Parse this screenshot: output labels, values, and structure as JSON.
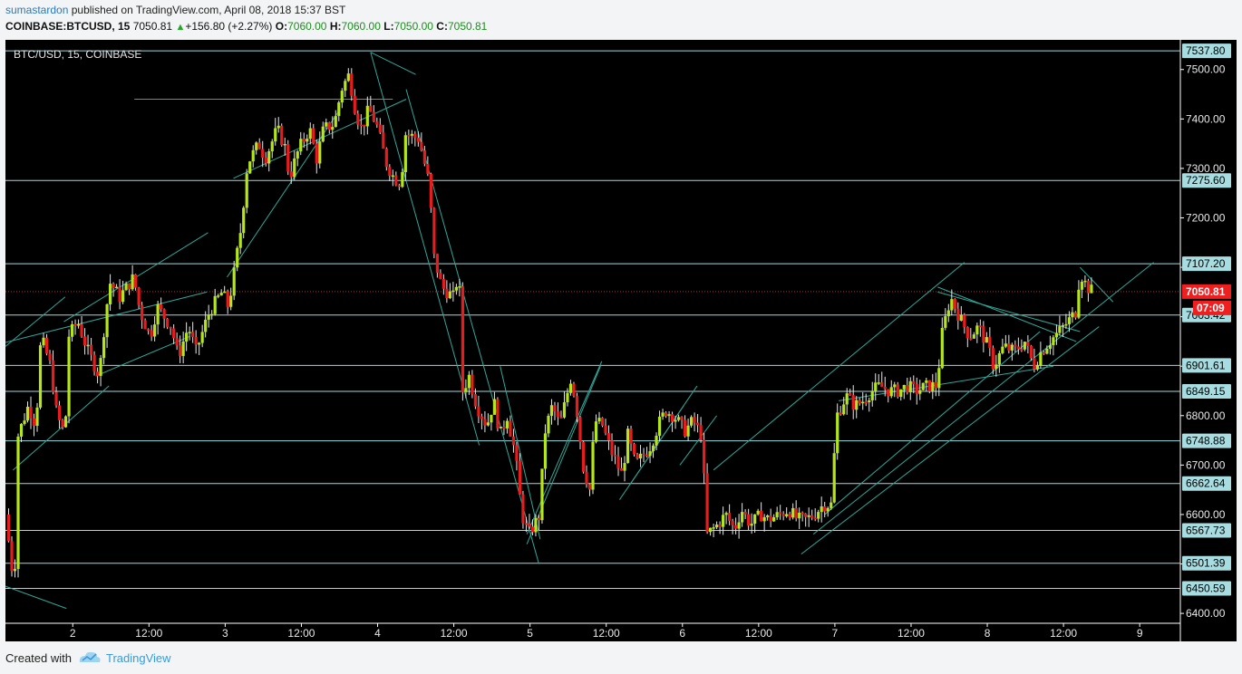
{
  "header": {
    "author": "sumastardon",
    "published_text": "published on TradingView.com, April 08, 2018 15:37 BST",
    "symbol_line": "COINBASE:BTCUSD, 15",
    "last": "7050.81",
    "change": "+156.80 (+2.27%)",
    "o_label": "O:",
    "o_value": "7060.00",
    "h_label": "H:",
    "h_value": "7060.00",
    "l_label": "L:",
    "l_value": "7050.00",
    "c_label": "C:",
    "c_value": "7050.81"
  },
  "chart_data": {
    "type": "candlestick",
    "title": "BTC/USD, 15, COINBASE",
    "ylim": [
      6380,
      7560
    ],
    "y_ticks": [
      6400,
      6500,
      6600,
      6700,
      6800,
      6900,
      7000,
      7100,
      7200,
      7300,
      7400,
      7500
    ],
    "y_tick_labels": [
      "6400.00",
      "6500.00",
      "6600.00",
      "6700.00",
      "6800.00",
      "6900.00",
      "7000.00",
      "7100.00",
      "7200.00",
      "7300.00",
      "7400.00",
      "7500.00"
    ],
    "x_ticks": [
      {
        "label": "2",
        "t": 12
      },
      {
        "label": "12:00",
        "t": 24
      },
      {
        "label": "3",
        "t": 36
      },
      {
        "label": "12:00",
        "t": 48
      },
      {
        "label": "4",
        "t": 60
      },
      {
        "label": "12:00",
        "t": 72
      },
      {
        "label": "5",
        "t": 84
      },
      {
        "label": "12:00",
        "t": 96
      },
      {
        "label": "6",
        "t": 108
      },
      {
        "label": "12:00",
        "t": 120
      },
      {
        "label": "7",
        "t": 132
      },
      {
        "label": "12:00",
        "t": 144
      },
      {
        "label": "8",
        "t": 156
      },
      {
        "label": "12:00",
        "t": 168
      },
      {
        "label": "9",
        "t": 180
      }
    ],
    "t_range": [
      1.4,
      186.4
    ],
    "price_levels": [
      {
        "value": 7537.8,
        "label": "7537.80"
      },
      {
        "value": 7275.6,
        "label": "7275.60"
      },
      {
        "value": 7107.2,
        "label": "7107.20"
      },
      {
        "value": 7003.42,
        "label": "7003.42"
      },
      {
        "value": 6901.61,
        "label": "6901.61"
      },
      {
        "value": 6849.15,
        "label": "6849.15"
      },
      {
        "value": 6748.88,
        "label": "6748.88"
      },
      {
        "value": 6662.64,
        "label": "6662.64"
      },
      {
        "value": 6567.73,
        "label": "6567.73"
      },
      {
        "value": 6501.39,
        "label": "6501.39"
      },
      {
        "value": 6450.59,
        "label": "6450.59"
      }
    ],
    "last_price": {
      "value": 7050.81,
      "label": "7050.81",
      "countdown": "07:09"
    },
    "series_path": [
      [
        1.4,
        6600
      ],
      [
        2.8,
        6450
      ],
      [
        3.4,
        6760
      ],
      [
        5,
        6820
      ],
      [
        6.2,
        6780
      ],
      [
        7,
        6960
      ],
      [
        8.5,
        6900
      ],
      [
        9.5,
        6800
      ],
      [
        10.8,
        6760
      ],
      [
        11.3,
        6960
      ],
      [
        12.8,
        6990
      ],
      [
        14.4,
        6930
      ],
      [
        16.2,
        6880
      ],
      [
        16.6,
        6940
      ],
      [
        17.8,
        7070
      ],
      [
        19.4,
        7040
      ],
      [
        21.6,
        7080
      ],
      [
        22.6,
        7010
      ],
      [
        24.2,
        6960
      ],
      [
        25.3,
        7020
      ],
      [
        27.5,
        6980
      ],
      [
        28.6,
        6920
      ],
      [
        30.2,
        6980
      ],
      [
        31.4,
        6930
      ],
      [
        32.2,
        6960
      ],
      [
        33.5,
        7010
      ],
      [
        35.5,
        7050
      ],
      [
        36.5,
        7020
      ],
      [
        37.3,
        7080
      ],
      [
        38.5,
        7180
      ],
      [
        39.5,
        7310
      ],
      [
        41.3,
        7350
      ],
      [
        42.3,
        7320
      ],
      [
        44.2,
        7380
      ],
      [
        45.5,
        7340
      ],
      [
        46.1,
        7280
      ],
      [
        47.6,
        7340
      ],
      [
        49.3,
        7380
      ],
      [
        50.4,
        7320
      ],
      [
        51.5,
        7380
      ],
      [
        53.2,
        7390
      ],
      [
        54.3,
        7460
      ],
      [
        55.5,
        7490
      ],
      [
        56.6,
        7410
      ],
      [
        57.5,
        7380
      ],
      [
        58.6,
        7420
      ],
      [
        59.8,
        7390
      ],
      [
        61.4,
        7310
      ],
      [
        62.6,
        7280
      ],
      [
        63.7,
        7270
      ],
      [
        64.3,
        7370
      ],
      [
        66.5,
        7360
      ],
      [
        68.1,
        7270
      ],
      [
        68.9,
        7120
      ],
      [
        70.1,
        7060
      ],
      [
        71.9,
        7040
      ],
      [
        72.8,
        7090
      ],
      [
        73.4,
        6850
      ],
      [
        74.4,
        6880
      ],
      [
        75.6,
        6820
      ],
      [
        77.2,
        6780
      ],
      [
        78.3,
        6830
      ],
      [
        79.3,
        6760
      ],
      [
        80.4,
        6800
      ],
      [
        81.7,
        6720
      ],
      [
        82.7,
        6600
      ],
      [
        83.8,
        6560
      ],
      [
        85.6,
        6600
      ],
      [
        86.2,
        6760
      ],
      [
        87.5,
        6820
      ],
      [
        88.7,
        6780
      ],
      [
        90.5,
        6880
      ],
      [
        91.6,
        6790
      ],
      [
        92.3,
        6700
      ],
      [
        93.4,
        6650
      ],
      [
        94.2,
        6790
      ],
      [
        95.4,
        6780
      ],
      [
        96.7,
        6730
      ],
      [
        98.5,
        6680
      ],
      [
        99.4,
        6760
      ],
      [
        100.6,
        6700
      ],
      [
        101.8,
        6720
      ],
      [
        103,
        6740
      ],
      [
        104.5,
        6790
      ],
      [
        105.4,
        6810
      ],
      [
        106.6,
        6800
      ],
      [
        108.4,
        6770
      ],
      [
        109.7,
        6790
      ],
      [
        111,
        6760
      ],
      [
        111.9,
        6560
      ],
      [
        113.6,
        6580
      ],
      [
        114.8,
        6600
      ],
      [
        116.2,
        6570
      ],
      [
        117.3,
        6610
      ],
      [
        118.7,
        6580
      ],
      [
        120.4,
        6600
      ],
      [
        121.5,
        6590
      ],
      [
        123.4,
        6600
      ],
      [
        124.7,
        6610
      ],
      [
        126.1,
        6590
      ],
      [
        127.5,
        6590
      ],
      [
        128.7,
        6600
      ],
      [
        130.2,
        6620
      ],
      [
        131.4,
        6620
      ],
      [
        132.3,
        6800
      ],
      [
        133.8,
        6840
      ],
      [
        135.1,
        6820
      ],
      [
        136.4,
        6830
      ],
      [
        137.8,
        6850
      ],
      [
        139.1,
        6860
      ],
      [
        140.6,
        6850
      ],
      [
        142,
        6850
      ],
      [
        143.4,
        6860
      ],
      [
        144.7,
        6850
      ],
      [
        146.6,
        6860
      ],
      [
        148.1,
        6860
      ],
      [
        148.8,
        6960
      ],
      [
        150.2,
        7040
      ],
      [
        151.6,
        7000
      ],
      [
        153.2,
        6960
      ],
      [
        154.6,
        6980
      ],
      [
        156.1,
        6940
      ],
      [
        157,
        6900
      ],
      [
        158.6,
        6940
      ],
      [
        160.2,
        6930
      ],
      [
        161.9,
        6950
      ],
      [
        163.3,
        6900
      ],
      [
        164.5,
        6930
      ],
      [
        165.8,
        6950
      ],
      [
        167.3,
        6970
      ],
      [
        168.7,
        6990
      ],
      [
        169.9,
        7010
      ],
      [
        170.6,
        7090
      ],
      [
        171.7,
        7060
      ],
      [
        172.6,
        7050.81
      ]
    ],
    "drawn_lines": [
      [
        [
          1.4,
          6948
        ],
        [
          33.1,
          7050
        ]
      ],
      [
        [
          1.4,
          6455
        ],
        [
          11,
          6410
        ]
      ],
      [
        [
          1.4,
          6940
        ],
        [
          10.8,
          7040
        ]
      ],
      [
        [
          2.6,
          6690
        ],
        [
          17.7,
          6860
        ]
      ],
      [
        [
          10.6,
          6990
        ],
        [
          33.3,
          7170
        ]
      ],
      [
        [
          15.6,
          6880
        ],
        [
          30.4,
          6960
        ]
      ],
      [
        [
          36.3,
          7080
        ],
        [
          54.1,
          7420
        ]
      ],
      [
        [
          37.3,
          7280
        ],
        [
          64.5,
          7440
        ]
      ],
      [
        [
          21.7,
          7440
        ],
        [
          62.4,
          7440
        ]
      ],
      [
        [
          58.9,
          7535
        ],
        [
          66,
          7490
        ]
      ],
      [
        [
          58.9,
          7535
        ],
        [
          76,
          6740
        ]
      ],
      [
        [
          64.5,
          7460
        ],
        [
          85.4,
          6500
        ]
      ],
      [
        [
          79.3,
          6900
        ],
        [
          85.6,
          6550
        ]
      ],
      [
        [
          83.5,
          6560
        ],
        [
          95.3,
          6910
        ]
      ],
      [
        [
          83.5,
          6540
        ],
        [
          95.1,
          6900
        ]
      ],
      [
        [
          98.1,
          6630
        ],
        [
          108.2,
          6820
        ]
      ],
      [
        [
          99.7,
          6660
        ],
        [
          110.3,
          6860
        ]
      ],
      [
        [
          107.6,
          6700
        ],
        [
          113.4,
          6800
        ]
      ],
      [
        [
          112.9,
          6690
        ],
        [
          152.4,
          7110
        ]
      ],
      [
        [
          126.7,
          6520
        ],
        [
          173.6,
          6980
        ]
      ],
      [
        [
          128.6,
          6560
        ],
        [
          182.2,
          7110
        ]
      ],
      [
        [
          132.6,
          6830
        ],
        [
          166.4,
          6900
        ]
      ],
      [
        [
          148.2,
          7060
        ],
        [
          170,
          6950
        ]
      ],
      [
        [
          148.2,
          7050
        ],
        [
          170.6,
          6970
        ]
      ],
      [
        [
          170.6,
          7100
        ],
        [
          175.8,
          7030
        ]
      ],
      [
        [
          130.4,
          6600
        ],
        [
          164.3,
          6970
        ]
      ]
    ]
  },
  "footer": {
    "created_with": "Created with",
    "brand": "TradingView"
  }
}
